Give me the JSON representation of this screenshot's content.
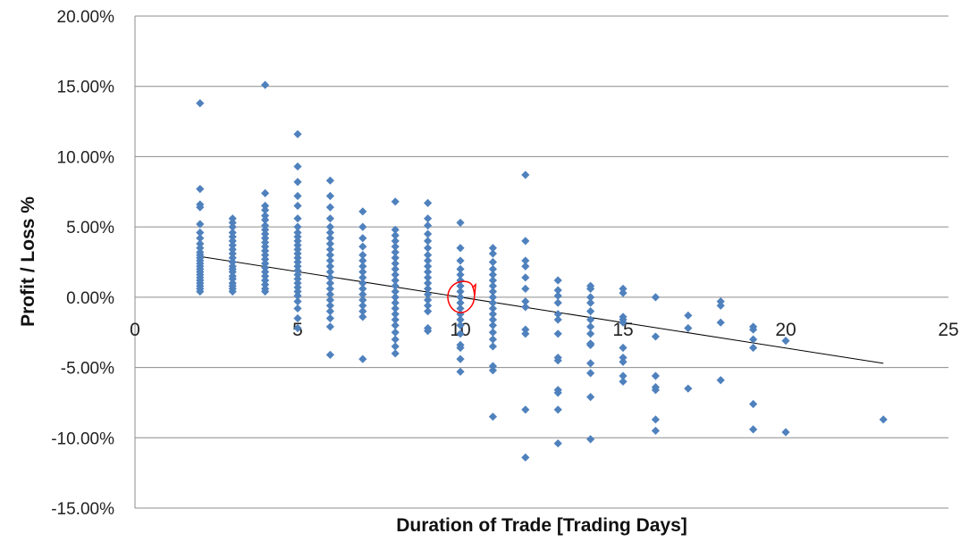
{
  "chart_data": {
    "type": "scatter",
    "title": "",
    "xlabel": "Duration of Trade [Trading Days]",
    "ylabel": "Profit / Loss %",
    "xlim": [
      0,
      25
    ],
    "ylim": [
      -15,
      20
    ],
    "x_ticks": [
      0,
      5,
      10,
      15,
      20,
      25
    ],
    "x_tick_labels": [
      "0",
      "5",
      "10",
      "15",
      "20",
      "25"
    ],
    "y_ticks": [
      20,
      15,
      10,
      5,
      0,
      -5,
      -10,
      -15
    ],
    "y_tick_labels": [
      "20.00%",
      "15.00%",
      "10.00%",
      "5.00%",
      "0.00%",
      "-5.00%",
      "-10.00%",
      "-15.00%"
    ],
    "grid": "horizontal",
    "legend": "none",
    "marker": "diamond",
    "series": [
      {
        "color": "#4f81bd",
        "columns": [
          {
            "x": 2,
            "y": [
              13.8,
              7.7,
              6.6,
              6.4,
              5.2,
              4.6,
              4.2,
              3.8,
              3.5,
              3.2,
              3.0,
              2.8,
              2.6,
              2.4,
              2.2,
              2.0,
              1.8,
              1.6,
              1.4,
              1.2,
              1.0,
              0.8,
              0.6,
              0.4
            ]
          },
          {
            "x": 3,
            "y": [
              5.6,
              5.3,
              5.0,
              4.6,
              4.3,
              4.0,
              3.7,
              3.4,
              3.1,
              2.8,
              2.5,
              2.2,
              2.0,
              1.8,
              1.5,
              1.3,
              1.0,
              0.8,
              0.6,
              0.4
            ]
          },
          {
            "x": 4,
            "y": [
              15.1,
              7.4,
              6.5,
              6.2,
              5.8,
              5.5,
              5.1,
              4.8,
              4.5,
              4.2,
              3.9,
              3.6,
              3.3,
              3.0,
              2.7,
              2.4,
              2.1,
              1.8,
              1.5,
              1.2,
              0.9,
              0.6,
              0.4
            ]
          },
          {
            "x": 5,
            "y": [
              11.6,
              9.3,
              8.2,
              7.2,
              6.5,
              5.6,
              5.0,
              4.6,
              4.3,
              4.0,
              3.7,
              3.4,
              3.1,
              2.8,
              2.5,
              2.2,
              1.9,
              1.6,
              1.3,
              1.0,
              0.7,
              0.4,
              0.1,
              -0.3,
              -0.8,
              -1.5,
              -2.2
            ]
          },
          {
            "x": 6,
            "y": [
              8.3,
              7.2,
              6.4,
              5.6,
              5.0,
              4.6,
              4.2,
              3.8,
              3.4,
              3.0,
              2.6,
              2.2,
              1.8,
              1.4,
              1.0,
              0.6,
              0.2,
              -0.2,
              -0.6,
              -1.0,
              -1.5,
              -2.1,
              -4.1
            ]
          },
          {
            "x": 7,
            "y": [
              6.1,
              5.0,
              4.2,
              3.6,
              3.0,
              2.6,
              2.2,
              1.8,
              1.4,
              1.0,
              0.6,
              0.2,
              -0.2,
              -0.6,
              -1.0,
              -1.4,
              -4.4
            ]
          },
          {
            "x": 8,
            "y": [
              6.8,
              4.8,
              4.4,
              4.0,
              3.6,
              3.2,
              2.8,
              2.4,
              2.0,
              1.6,
              1.2,
              0.8,
              0.4,
              0.0,
              -0.4,
              -0.8,
              -1.2,
              -1.6,
              -2.0,
              -2.5,
              -3.0,
              -3.5,
              -4.0
            ]
          },
          {
            "x": 9,
            "y": [
              6.7,
              5.6,
              5.1,
              4.5,
              4.0,
              3.5,
              3.0,
              2.6,
              2.2,
              1.8,
              1.4,
              1.0,
              0.6,
              0.2,
              -0.2,
              -0.6,
              -1.0,
              -2.2,
              -2.4
            ]
          },
          {
            "x": 10,
            "y": [
              5.3,
              3.5,
              2.6,
              2.0,
              1.6,
              1.2,
              0.8,
              0.4,
              0.0,
              -0.4,
              -0.8,
              -1.2,
              -1.6,
              -2.0,
              -2.6,
              -3.4,
              -3.6,
              -4.4,
              -5.3
            ]
          },
          {
            "x": 11,
            "y": [
              3.5,
              3.1,
              2.5,
              2.0,
              1.6,
              1.2,
              0.8,
              0.4,
              0.0,
              -0.4,
              -0.8,
              -1.2,
              -1.6,
              -2.0,
              -2.5,
              -3.0,
              -3.5,
              -4.9,
              -5.2,
              -8.5
            ]
          },
          {
            "x": 12,
            "y": [
              8.7,
              4.0,
              2.6,
              2.2,
              1.4,
              0.6,
              -0.3,
              -0.7,
              -2.3,
              -2.6,
              -8.0,
              -11.4
            ]
          },
          {
            "x": 13,
            "y": [
              1.2,
              0.5,
              0.1,
              -0.4,
              -1.2,
              -1.6,
              -2.6,
              -4.3,
              -4.5,
              -6.6,
              -6.8,
              -8.0,
              -10.4
            ]
          },
          {
            "x": 14,
            "y": [
              0.8,
              0.6,
              0.0,
              -0.4,
              -1.0,
              -1.6,
              -2.1,
              -2.6,
              -3.3,
              -3.4,
              -4.7,
              -5.4,
              -7.1,
              -10.1
            ]
          },
          {
            "x": 15,
            "y": [
              0.6,
              0.3,
              -1.4,
              -1.6,
              -1.8,
              -3.6,
              -4.3,
              -4.6,
              -5.6,
              -6.0
            ]
          },
          {
            "x": 16,
            "y": [
              0.0,
              -2.8,
              -5.6,
              -6.4,
              -6.6,
              -8.7,
              -9.5
            ]
          },
          {
            "x": 17,
            "y": [
              -1.3,
              -2.2,
              -6.5
            ]
          },
          {
            "x": 18,
            "y": [
              -0.3,
              -0.6,
              -1.8,
              -5.9
            ]
          },
          {
            "x": 19,
            "y": [
              -2.1,
              -2.3,
              -3.0,
              -3.6,
              -7.6,
              -9.4
            ]
          },
          {
            "x": 20,
            "y": [
              -3.1,
              -9.6
            ]
          },
          {
            "x": 23,
            "y": [
              -8.7
            ]
          }
        ]
      }
    ],
    "trendline": {
      "type": "linear",
      "x": [
        2,
        23
      ],
      "y": [
        2.9,
        -4.7
      ],
      "color": "#000000"
    },
    "annotation": {
      "type": "circle",
      "x": 10,
      "y": 0.0,
      "color": "#ff0000"
    }
  }
}
